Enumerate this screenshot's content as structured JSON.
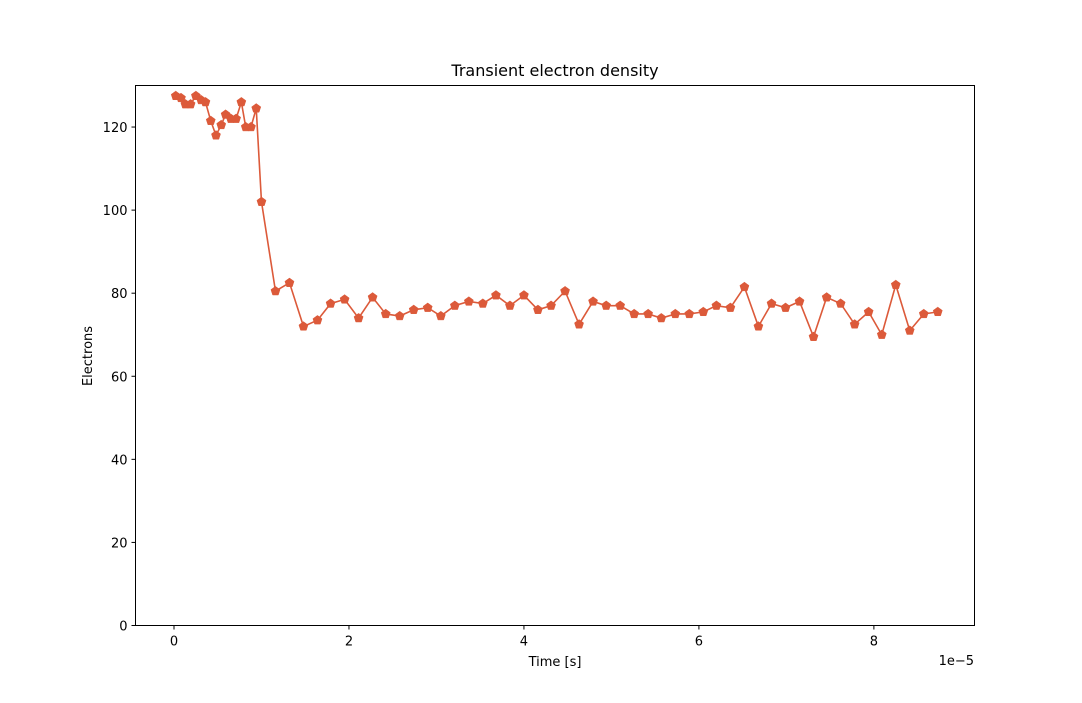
{
  "chart_data": {
    "type": "line",
    "title": "Transient electron density",
    "xlabel": "Time [s]",
    "ylabel": "Electrons",
    "x_offset_text": "1e−5",
    "x_scale_factor": 1e-05,
    "xlim": [
      -0.44,
      9.15
    ],
    "ylim": [
      0,
      130
    ],
    "x_ticks": [
      0,
      2,
      4,
      6,
      8
    ],
    "y_ticks": [
      0,
      20,
      40,
      60,
      80,
      100,
      120
    ],
    "color": "#dc5a3a",
    "marker": "pentagon",
    "grid": false,
    "series": [
      {
        "x": [
          0.02,
          0.08,
          0.13,
          0.19,
          0.25,
          0.31,
          0.36,
          0.42,
          0.48,
          0.54,
          0.59,
          0.65,
          0.71,
          0.77,
          0.82,
          0.88,
          0.94,
          1.0,
          1.16,
          1.32,
          1.48,
          1.64,
          1.79,
          1.95,
          2.11,
          2.27,
          2.42,
          2.58,
          2.74,
          2.9,
          3.05,
          3.21,
          3.37,
          3.53,
          3.68,
          3.84,
          4.0,
          4.16,
          4.31,
          4.47,
          4.63,
          4.79,
          4.94,
          5.1,
          5.26,
          5.42,
          5.57,
          5.73,
          5.89,
          6.05,
          6.2,
          6.36,
          6.52,
          6.68,
          6.83,
          6.99,
          7.15,
          7.31,
          7.46,
          7.62,
          7.78,
          7.94,
          8.09,
          8.25,
          8.41,
          8.57,
          8.73
        ],
        "y": [
          127.5,
          127,
          125.5,
          125.5,
          127.5,
          126.5,
          126,
          121.5,
          118,
          120.5,
          123,
          122,
          122,
          126,
          120,
          120,
          124.5,
          102,
          80.5,
          82.5,
          72,
          73.5,
          77.5,
          78.5,
          74,
          79,
          75,
          74.5,
          76,
          76.5,
          74.5,
          77,
          78,
          77.5,
          79.5,
          77,
          79.5,
          76,
          77,
          80.5,
          72.5,
          78,
          77,
          77,
          75,
          75,
          74,
          75,
          75,
          75.5,
          77,
          76.5,
          81.5,
          72,
          77.5,
          76.5,
          78,
          69.5,
          79,
          77.5,
          72.5,
          75.5,
          70,
          82,
          71,
          75,
          75.5
        ]
      }
    ]
  }
}
